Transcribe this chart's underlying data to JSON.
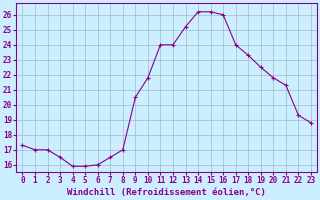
{
  "hours": [
    0,
    1,
    2,
    3,
    4,
    5,
    6,
    7,
    8,
    9,
    10,
    11,
    12,
    13,
    14,
    15,
    16,
    17,
    18,
    19,
    20,
    21,
    22,
    23
  ],
  "values": [
    17.3,
    17.0,
    17.0,
    16.5,
    15.9,
    15.9,
    16.0,
    16.5,
    17.0,
    20.5,
    21.8,
    24.0,
    24.0,
    25.2,
    26.2,
    26.2,
    26.0,
    24.0,
    23.3,
    22.5,
    21.8,
    21.3,
    19.3,
    18.8
  ],
  "line_color": "#880088",
  "marker": "+",
  "marker_size": 3,
  "marker_lw": 0.8,
  "bg_color": "#cceeff",
  "grid_color": "#99bbcc",
  "xlabel": "Windchill (Refroidissement éolien,°C)",
  "ylim": [
    15.5,
    26.8
  ],
  "yticks": [
    16,
    17,
    18,
    19,
    20,
    21,
    22,
    23,
    24,
    25,
    26
  ],
  "xlim": [
    -0.5,
    23.5
  ],
  "xticks": [
    0,
    1,
    2,
    3,
    4,
    5,
    6,
    7,
    8,
    9,
    10,
    11,
    12,
    13,
    14,
    15,
    16,
    17,
    18,
    19,
    20,
    21,
    22,
    23
  ],
  "tick_fontsize": 5.5,
  "xlabel_fontsize": 6.5,
  "text_color": "#880088",
  "line_width": 0.8
}
